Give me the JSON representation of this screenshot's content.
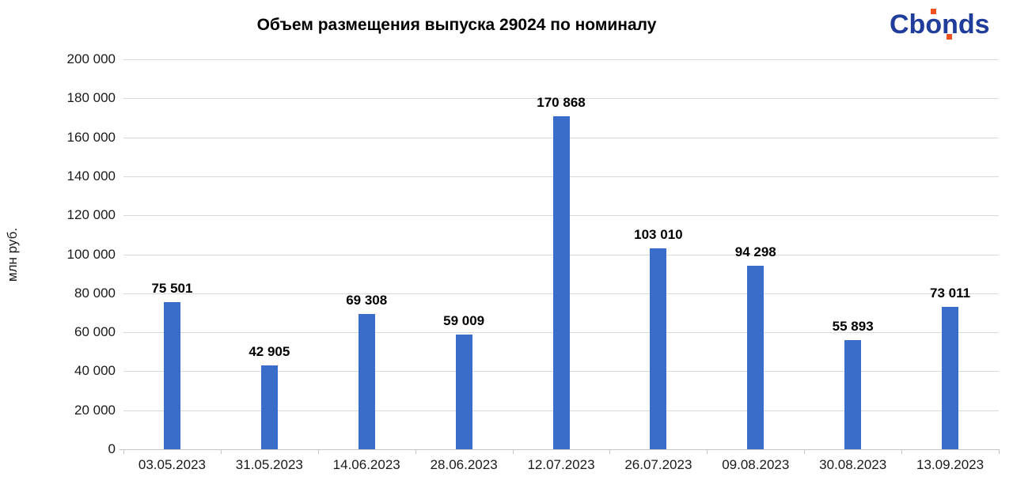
{
  "logo": {
    "text": "Cbonds",
    "color": "#203D9B",
    "accent_color": "#F0511E"
  },
  "chart_data": {
    "type": "bar",
    "title": "Объем размещения выпуска 29024 по номиналу",
    "ylabel": "млн руб.",
    "xlabel": "",
    "categories": [
      "03.05.2023",
      "31.05.2023",
      "14.06.2023",
      "28.06.2023",
      "12.07.2023",
      "26.07.2023",
      "09.08.2023",
      "30.08.2023",
      "13.09.2023"
    ],
    "values": [
      75501,
      42905,
      69308,
      59009,
      170868,
      103010,
      94298,
      55893,
      73011
    ],
    "value_labels": [
      "75 501",
      "42 905",
      "69 308",
      "59 009",
      "170 868",
      "103 010",
      "94 298",
      "55 893",
      "73 011"
    ],
    "ylim": [
      0,
      200000
    ],
    "ytick_values": [
      0,
      20000,
      40000,
      60000,
      80000,
      100000,
      120000,
      140000,
      160000,
      180000,
      200000
    ],
    "ytick_labels": [
      "0",
      "20 000",
      "40 000",
      "60 000",
      "80 000",
      "100 000",
      "120 000",
      "140 000",
      "160 000",
      "180 000",
      "200 000"
    ],
    "grid": true,
    "legend": "none",
    "bar_color": "#3A6CC9"
  }
}
